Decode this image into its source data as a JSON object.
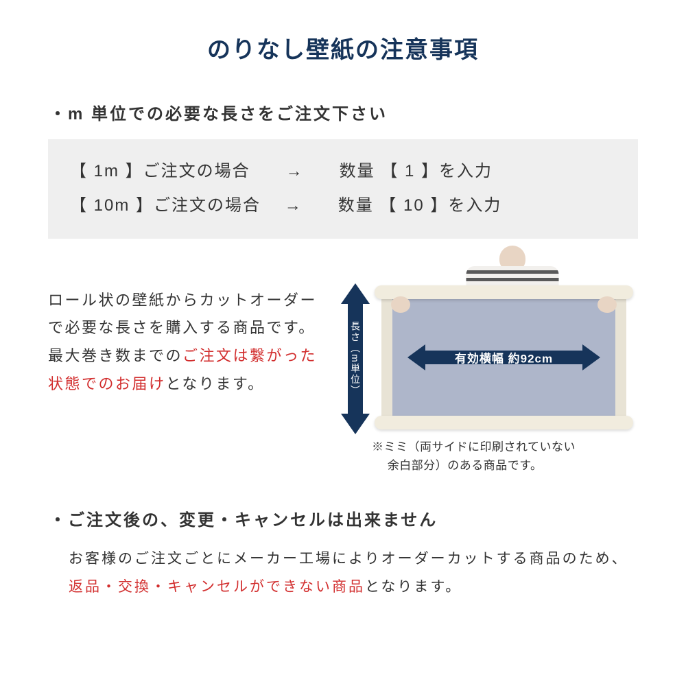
{
  "colors": {
    "navy": "#16345a",
    "red": "#d22e2e",
    "text": "#333333",
    "box_bg": "#efefef",
    "sheet": "#aeb6ca",
    "roll": "#f1ecde",
    "selvage": "#e8e3d5"
  },
  "title": "のりなし壁紙の注意事項",
  "section1": {
    "heading": "・m 単位での必要な長さをご注文下さい",
    "example_line1": "【 1m 】ご注文の場合　　→　　数量 【 1 】を入力",
    "example_line2": "【 10m 】ご注文の場合　 →　　数量 【 10 】を入力"
  },
  "description": {
    "part1": "ロール状の壁紙からカットオーダーで必要な長さを購入する商品です。最大巻き数までの",
    "highlight": "ご注文は繋がった状態でのお届け",
    "part2": "となります。"
  },
  "diagram": {
    "vertical_label": "長さ（m単位）",
    "horizontal_label": "有効横幅 約92cm",
    "footnote_line1": "※ミミ（両サイドに印刷されていない",
    "footnote_line2": "　 余白部分）のある商品です。"
  },
  "section2": {
    "heading": "・ご注文後の、変更・キャンセルは出来ません",
    "desc_part1": "お客様のご注文ごとにメーカー工場によりオーダーカットする商品のため、",
    "desc_highlight": "返品・交換・キャンセルができない商品",
    "desc_part2": "となります。"
  }
}
